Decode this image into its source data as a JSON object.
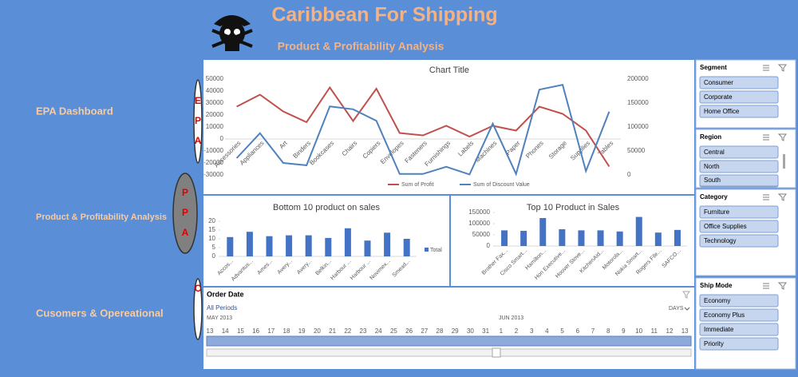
{
  "header": {
    "title": "Caribbean For Shipping",
    "subtitle": "Product & Profitability Analysis"
  },
  "nav": [
    {
      "label": "EPA Dashboard",
      "badge": [
        "E",
        "P",
        "A"
      ]
    },
    {
      "label": "Product & Profitability Analysis",
      "badge": [
        "P",
        "P",
        "A"
      ]
    },
    {
      "label": "Cusomers & Opereational",
      "badge": [
        "C"
      ]
    }
  ],
  "line_chart": {
    "type": "line",
    "title": "Chart Title",
    "categories": [
      "Accessories",
      "Appliances",
      "Art",
      "Binders",
      "Bookcases",
      "Chairs",
      "Copiers",
      "Envelopes",
      "Fasteners",
      "Furnishings",
      "Labels",
      "Machines",
      "Paper",
      "Phones",
      "Storage",
      "Supplies",
      "Tables"
    ],
    "series": [
      {
        "name": "Sum of Profit",
        "color": "#c0504d",
        "values": [
          27000,
          37000,
          23000,
          14000,
          43000,
          15000,
          42000,
          5000,
          3000,
          11000,
          2000,
          11000,
          7000,
          27000,
          21000,
          7000,
          -23000
        ]
      },
      {
        "name": "Sum of Discount Value",
        "color": "#4f81bd",
        "axis": "y2",
        "values": [
          35000,
          87000,
          25000,
          20000,
          143000,
          137000,
          113000,
          2000,
          2000,
          17000,
          1000,
          107000,
          2000,
          178000,
          188000,
          8000,
          132000
        ]
      }
    ],
    "ylim": [
      -30000,
      50000
    ],
    "yticks": [
      -30000,
      -20000,
      -10000,
      0,
      10000,
      20000,
      30000,
      40000,
      50000
    ],
    "y2lim": [
      0,
      200000
    ],
    "y2ticks": [
      0,
      50000,
      100000,
      150000,
      200000
    ]
  },
  "bottom_chart": {
    "type": "bar",
    "title": "Bottom 10 product on sales",
    "categories": [
      "Accos...",
      "Advantus...",
      "Ames...",
      "Avery...",
      "Avery...",
      "Belkin...",
      "Harbour ...",
      "Harbour ...",
      "Novimex...",
      "Smead..."
    ],
    "series": [
      {
        "name": "Total",
        "color": "#4472c4",
        "values": [
          11,
          14,
          11.5,
          12,
          12,
          10.5,
          16,
          9,
          13.5,
          10
        ]
      }
    ],
    "ylim": [
      0,
      20
    ],
    "yticks": [
      0,
      5,
      10,
      15,
      20
    ]
  },
  "top_chart": {
    "type": "bar",
    "title": "Top 10 Product in Sales",
    "categories": [
      "Brother Fax...",
      "Cisco Smart...",
      "Hamilton...",
      "Hon Executive...",
      "Hoover Stove...",
      "KitchenAid...",
      "Motorola...",
      "Nokia Smart...",
      "Rogers File...",
      "SAFCO..."
    ],
    "series": [
      {
        "name": "Total",
        "color": "#4472c4",
        "values": [
          70000,
          68000,
          125000,
          75000,
          70000,
          70000,
          65000,
          130000,
          60000,
          72000
        ]
      }
    ],
    "ylim": [
      0,
      150000
    ],
    "yticks": [
      0,
      50000,
      100000,
      150000
    ]
  },
  "timeline": {
    "title": "Order Date",
    "period": "All Periods",
    "unit": "DAYS",
    "months": [
      "MAY 2013",
      "JUN 2013"
    ],
    "days": [
      "13",
      "14",
      "15",
      "16",
      "17",
      "18",
      "19",
      "20",
      "21",
      "22",
      "23",
      "24",
      "25",
      "26",
      "27",
      "28",
      "29",
      "30",
      "31",
      "1",
      "2",
      "3",
      "4",
      "5",
      "6",
      "7",
      "8",
      "9",
      "10",
      "11",
      "12",
      "13"
    ]
  },
  "slicers": [
    {
      "title": "Segment",
      "items": [
        "Consumer",
        "Corporate",
        "Home Office"
      ]
    },
    {
      "title": "Region",
      "items": [
        "Central",
        "North",
        "South"
      ]
    },
    {
      "title": "Category",
      "items": [
        "Furniture",
        "Office Supplies",
        "Technology"
      ]
    },
    {
      "title": "Ship Mode",
      "items": [
        "Economy",
        "Economy Plus",
        "Immediate",
        "Priority"
      ]
    }
  ]
}
